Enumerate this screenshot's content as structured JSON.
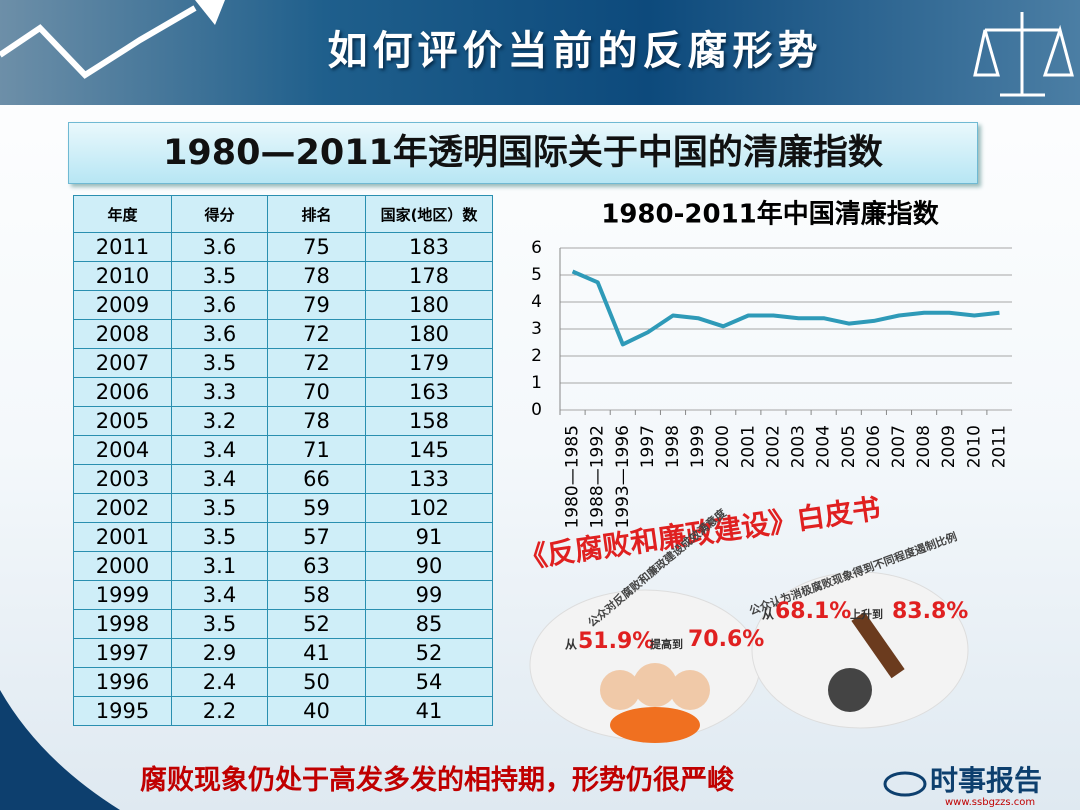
{
  "header": {
    "title": "如何评价当前的反腐形势"
  },
  "subtitle": "1980—2011年透明国际关于中国的清廉指数",
  "table": {
    "header": [
      "年度",
      "得分",
      "排名",
      "国家(地区）数"
    ],
    "rows": [
      [
        "2011",
        "3.6",
        "75",
        "183"
      ],
      [
        "2010",
        "3.5",
        "78",
        "178"
      ],
      [
        "2009",
        "3.6",
        "79",
        "180"
      ],
      [
        "2008",
        "3.6",
        "72",
        "180"
      ],
      [
        "2007",
        "3.5",
        "72",
        "179"
      ],
      [
        "2006",
        "3.3",
        "70",
        "163"
      ],
      [
        "2005",
        "3.2",
        "78",
        "158"
      ],
      [
        "2004",
        "3.4",
        "71",
        "145"
      ],
      [
        "2003",
        "3.4",
        "66",
        "133"
      ],
      [
        "2002",
        "3.5",
        "59",
        "102"
      ],
      [
        "2001",
        "3.5",
        "57",
        "91"
      ],
      [
        "2000",
        "3.1",
        "63",
        "90"
      ],
      [
        "1999",
        "3.4",
        "58",
        "99"
      ],
      [
        "1998",
        "3.5",
        "52",
        "85"
      ],
      [
        "1997",
        "2.9",
        "41",
        "52"
      ],
      [
        "1996",
        "2.4",
        "50",
        "54"
      ],
      [
        "1995",
        "2.2",
        "40",
        "41"
      ]
    ]
  },
  "chart_data": {
    "type": "line",
    "title": "1980-2011年中国清廉指数",
    "categories": [
      "1980—1985",
      "1988—1992",
      "1993—1996",
      "1997",
      "1998",
      "1999",
      "2000",
      "2001",
      "2002",
      "2003",
      "2004",
      "2005",
      "2006",
      "2007",
      "2008",
      "2009",
      "2010",
      "2011"
    ],
    "values": [
      5.13,
      4.73,
      2.43,
      2.88,
      3.5,
      3.4,
      3.1,
      3.5,
      3.5,
      3.4,
      3.4,
      3.2,
      3.3,
      3.5,
      3.6,
      3.6,
      3.5,
      3.6
    ],
    "color": "#2e9ab8",
    "ylim": [
      0,
      6
    ],
    "yticks": [
      0,
      1,
      2,
      3,
      4,
      5,
      6
    ],
    "grid": true
  },
  "image": {
    "book": "《反腐败和廉政建设》白皮书",
    "left_caption": "公众对反腐败和廉政建设成效满意度",
    "from": "从",
    "left_from": "51.9%",
    "raise": "提高到",
    "left_to": "70.6%",
    "right_caption": "公众认为消极腐败现象得到不同程度遏制比例",
    "right_from": "68.1%",
    "rise": "上升到",
    "right_to": "83.8%"
  },
  "footer": {
    "text": "腐败现象仍处于高发多发的相持期，形势仍很严峻",
    "logo": "时事报告",
    "url": "www.ssbgzzs.com"
  }
}
